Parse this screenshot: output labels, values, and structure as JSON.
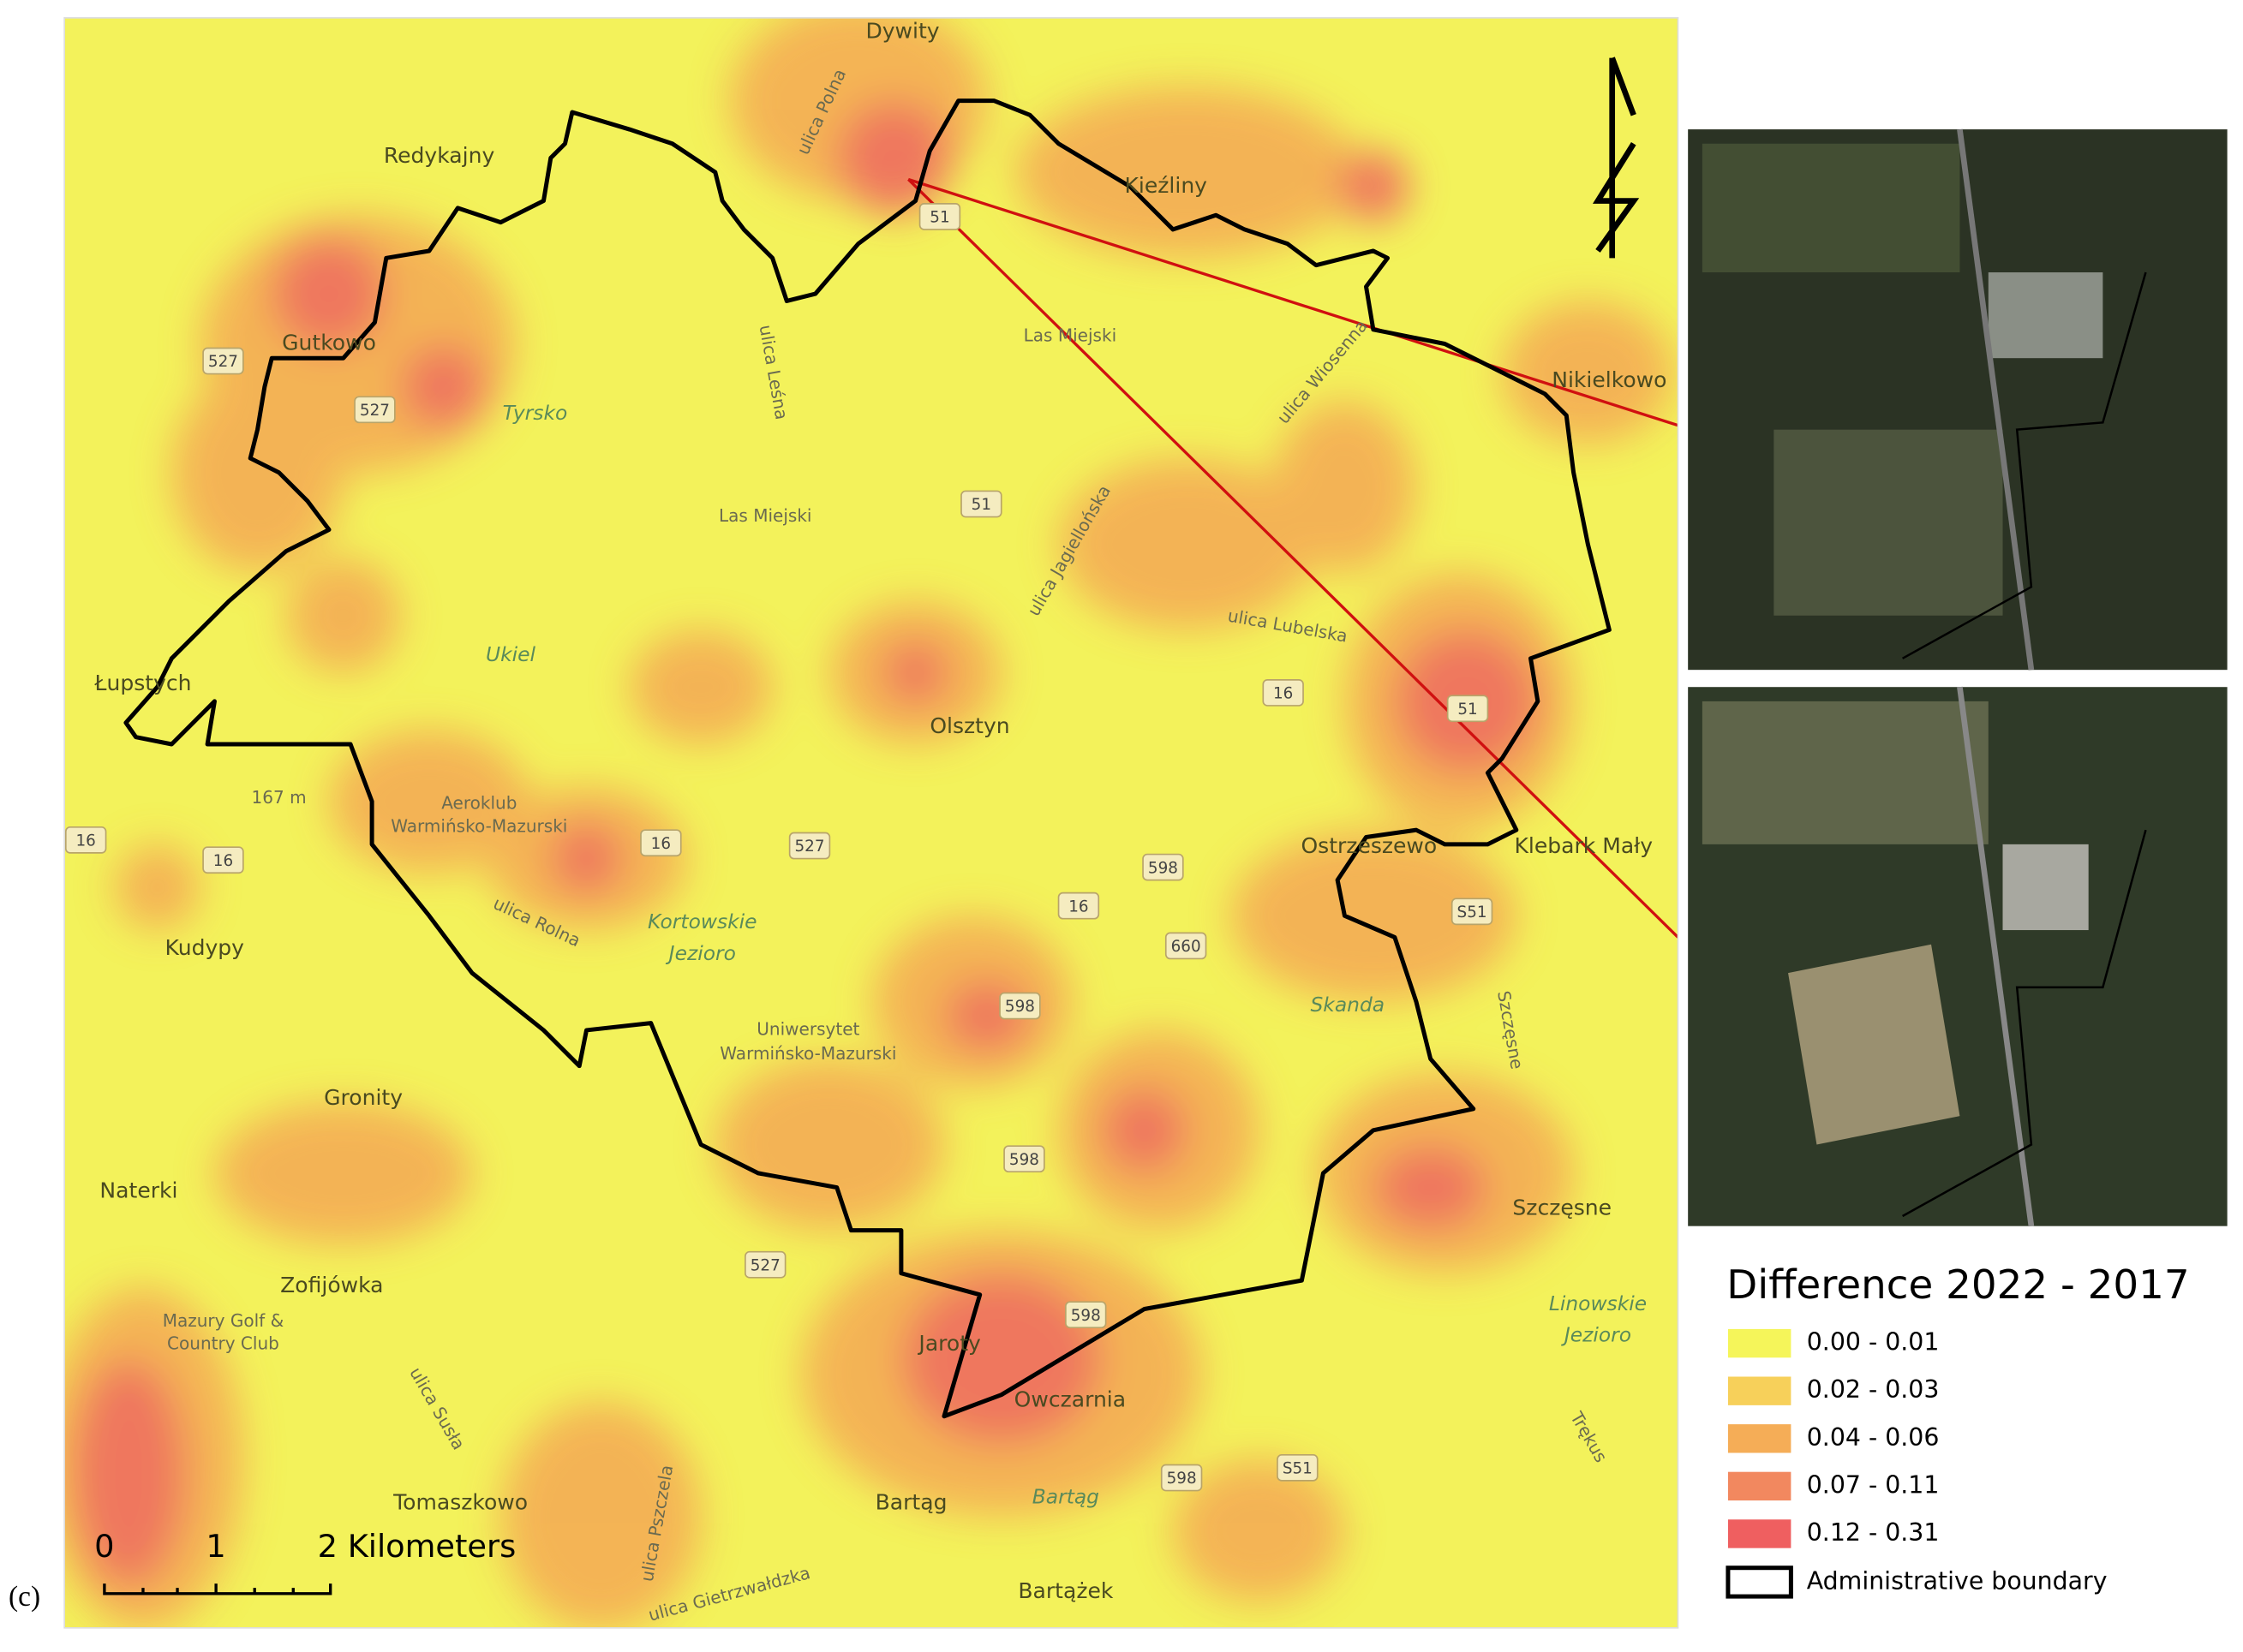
{
  "panel_label": "(c)",
  "place_labels": [
    "Dywity",
    "Redykajny",
    "Kieźliny",
    "Gutkowo",
    "Tyrsko",
    "Las Miejski",
    "Las Miejski",
    "Nikielkowo",
    "Łupstych",
    "Ukiel",
    "Olsztyn",
    "167 m",
    "Aeroklub",
    "Warmińsko-Mazurski",
    "Kortowskie",
    "Jezioro",
    "Kudypy",
    "Uniwersytet",
    "Warmińsko-Mazurski",
    "Ostrzeszewo",
    "Klebark Mały",
    "Skanda",
    "Gronity",
    "Naterki",
    "Zofijówka",
    "Mazury Golf &",
    "Country Club",
    "Szczęsne",
    "Linowskie",
    "Jezioro",
    "Jaroty",
    "Owczarnia",
    "Tomaszkowo",
    "Bartąg",
    "Bartąg",
    "Bartążek",
    "Trękus",
    "ulica Polna",
    "ulica Leśna",
    "ulica Wiosenna",
    "ulica Jagiellońska",
    "ulica Lubelska",
    "ulica Rolna",
    "ulica Susła",
    "ulica Pszczela",
    "ulica Gietrzwałdzka",
    "Szczęsne"
  ],
  "road_shields": [
    "527",
    "527",
    "51",
    "51",
    "51",
    "16",
    "16",
    "16",
    "16",
    "527",
    "598",
    "16",
    "660",
    "598",
    "598",
    "527",
    "598",
    "598",
    "S51",
    "S51"
  ],
  "scale_bar": {
    "labels": [
      "0",
      "1",
      "2 Kilometers"
    ]
  },
  "legend": {
    "title": "Difference 2022 - 2017",
    "items": [
      {
        "label": "0.00 - 0.01",
        "color": "#f5f55a"
      },
      {
        "label": "0.02 - 0.03",
        "color": "#f7d05a"
      },
      {
        "label": "0.04 - 0.06",
        "color": "#f5ad57"
      },
      {
        "label": "0.07 - 0.11",
        "color": "#f2885f"
      },
      {
        "label": "0.12 - 0.31",
        "color": "#ef5f60"
      }
    ],
    "boundary": "Administrative boundary"
  }
}
